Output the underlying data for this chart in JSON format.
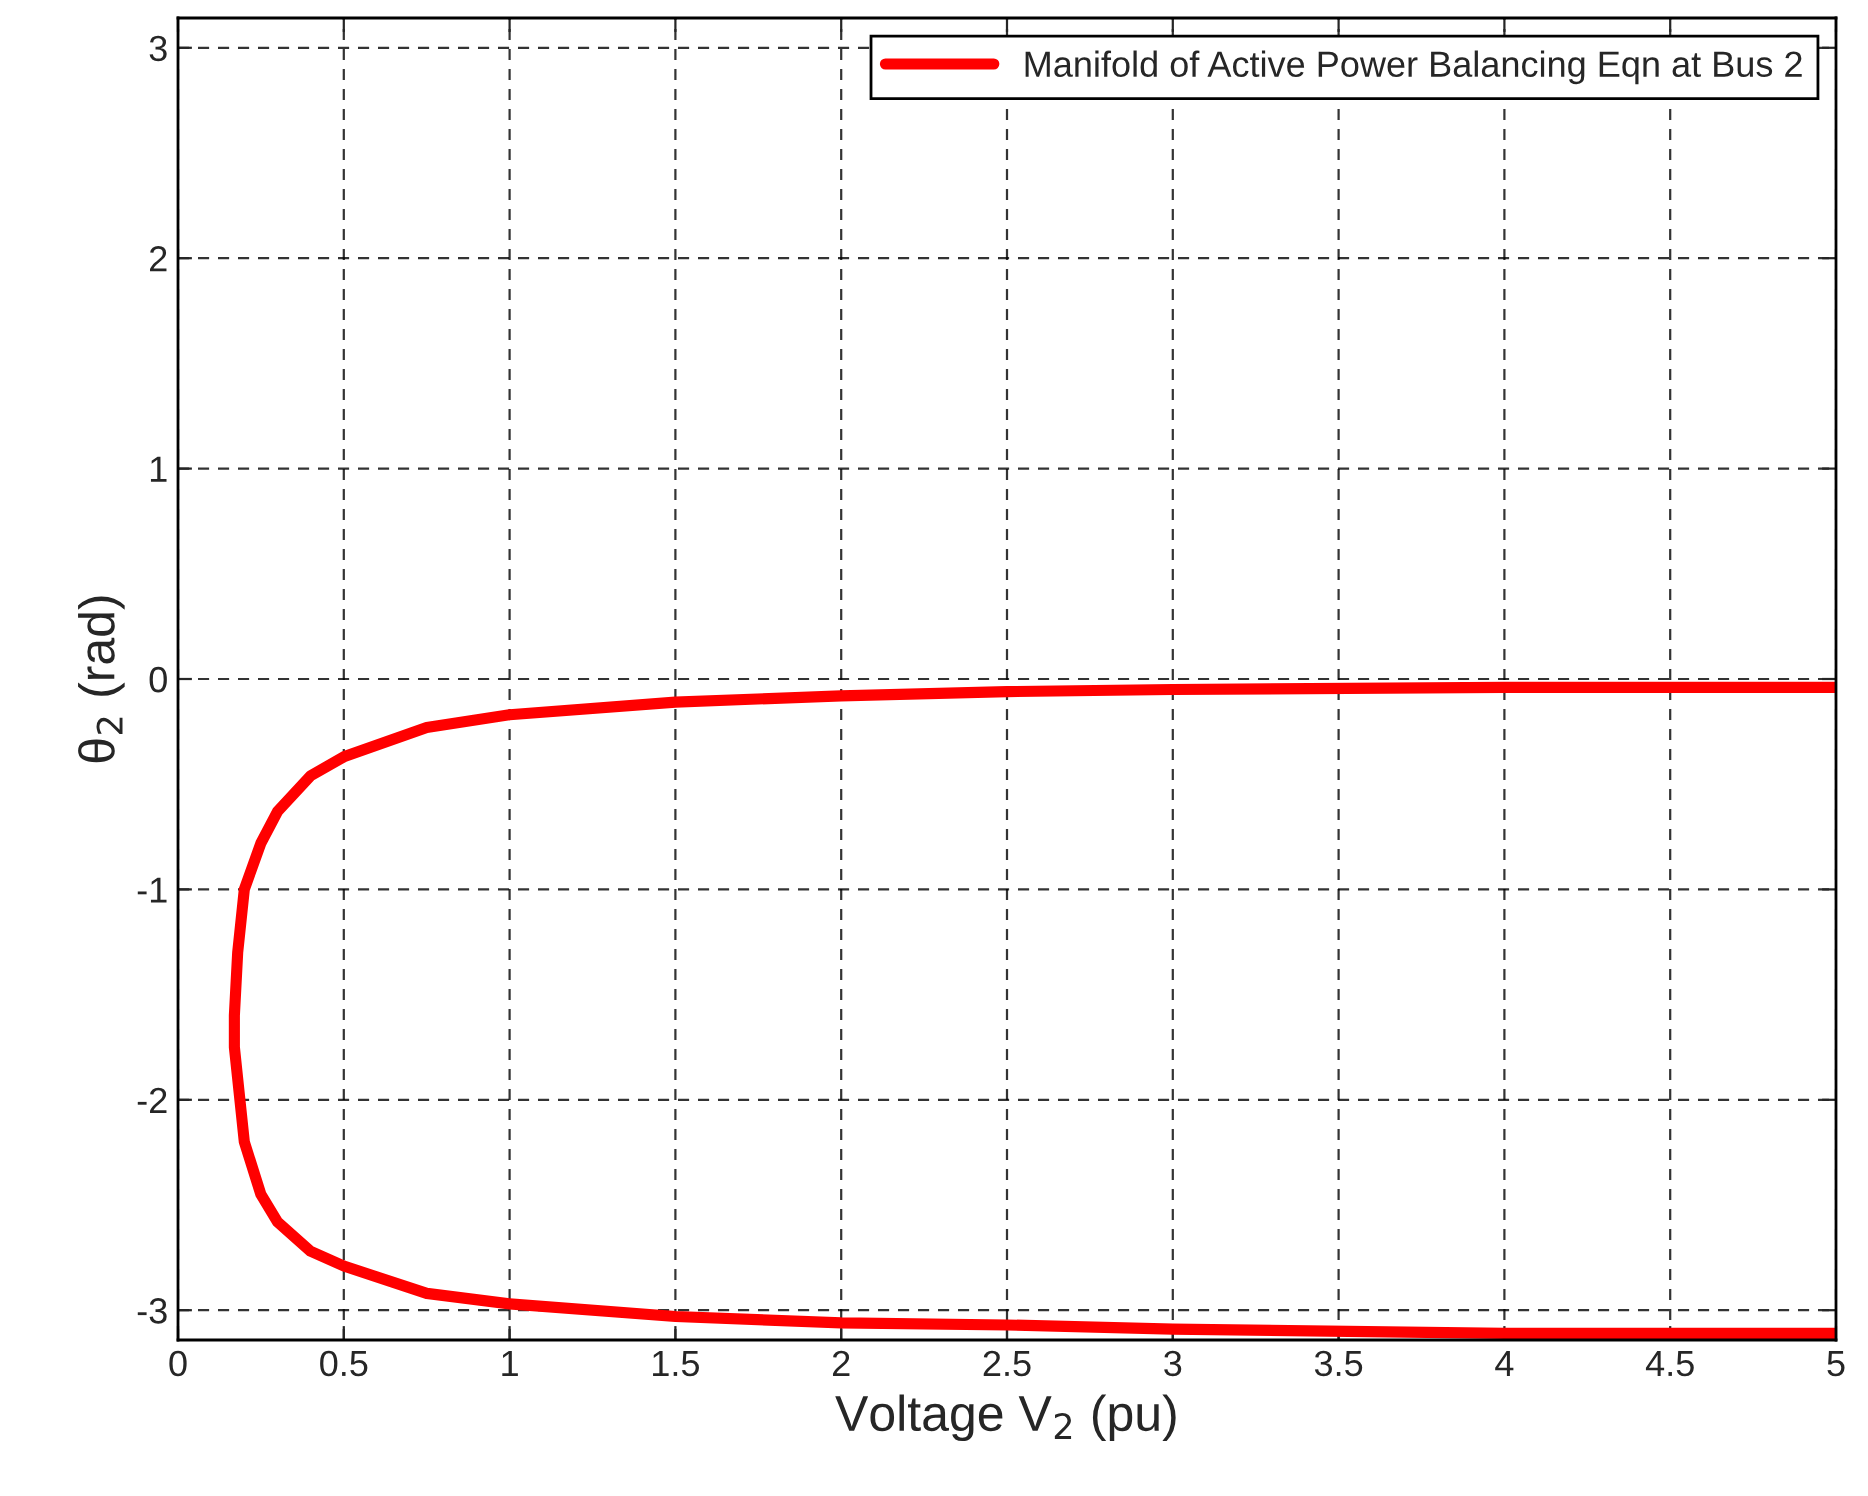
{
  "chart_data": {
    "type": "line",
    "xlabel": "Voltage V$_{2}$ (pu)",
    "ylabel": "θ$_{2}$ (rad)",
    "series": [
      {
        "name": "Manifold of Active Power Balancing Eqn at Bus 2",
        "color": "#ff0000",
        "x": [
          5,
          4,
          3,
          2.5,
          2,
          1.5,
          1,
          0.75,
          0.5,
          0.4,
          0.3,
          0.25,
          0.2,
          0.18,
          0.17,
          0.17,
          0.18,
          0.2,
          0.25,
          0.3,
          0.4,
          0.5,
          0.75,
          1,
          1.5,
          2,
          2.5,
          3,
          4,
          5
        ],
        "values": [
          -0.04,
          -0.04,
          -0.05,
          -0.06,
          -0.08,
          -0.11,
          -0.17,
          -0.23,
          -0.37,
          -0.46,
          -0.63,
          -0.78,
          -1.0,
          -1.3,
          -1.6,
          -1.75,
          -1.9,
          -2.2,
          -2.45,
          -2.58,
          -2.72,
          -2.79,
          -2.92,
          -2.97,
          -3.03,
          -3.06,
          -3.07,
          -3.09,
          -3.11,
          -3.11
        ]
      }
    ],
    "xlim": [
      0,
      5
    ],
    "ylim": [
      -3.1416,
      3.1416
    ],
    "xticks": [
      0,
      0.5,
      1,
      1.5,
      2,
      2.5,
      3,
      3.5,
      4,
      4.5,
      5
    ],
    "yticks": [
      -3,
      -2,
      -1,
      0,
      1,
      2,
      3
    ],
    "grid": true,
    "legend": "top right",
    "line_style": "solid",
    "marker": "none"
  }
}
